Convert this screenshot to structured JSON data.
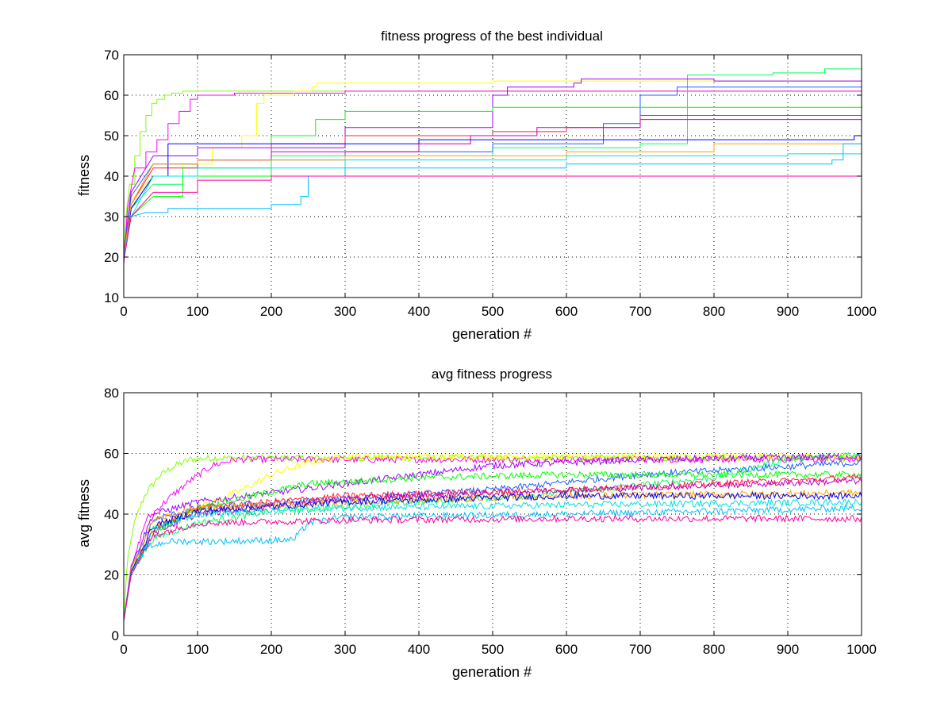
{
  "chart_data": [
    {
      "type": "line",
      "title": "fitness progress of the best individual",
      "xlabel": "generation #",
      "ylabel": "fitness",
      "xlim": [
        0,
        1000
      ],
      "ylim": [
        10,
        70
      ],
      "xticks": [
        0,
        100,
        200,
        300,
        400,
        500,
        600,
        700,
        800,
        900,
        1000
      ],
      "yticks": [
        10,
        20,
        30,
        40,
        50,
        60,
        70
      ],
      "grid": true,
      "legend": "none",
      "series_colors": [
        "#00e0e0",
        "#2060ff",
        "#ff00a0",
        "#ff00ff",
        "#ffff00",
        "#80ff00",
        "#00ff60",
        "#ff2040",
        "#ffa000",
        "#a000ff",
        "#0000ff",
        "#00c0ff",
        "#c000c0",
        "#00ff00"
      ],
      "series": [
        {
          "color": "#80ff00",
          "x": [
            0,
            3,
            8,
            15,
            22,
            30,
            38,
            45,
            55,
            65,
            80,
            120,
            200,
            300,
            1000
          ],
          "y": [
            19,
            30,
            38,
            45,
            51,
            55,
            58,
            59,
            60,
            60.5,
            61,
            61,
            61,
            61,
            61
          ]
        },
        {
          "color": "#ff00ff",
          "x": [
            0,
            5,
            15,
            30,
            45,
            60,
            75,
            90,
            100,
            150,
            300,
            1000
          ],
          "y": [
            18,
            32,
            42,
            46,
            49,
            53,
            56,
            59,
            60,
            60.5,
            61,
            61
          ]
        },
        {
          "color": "#ffff00",
          "x": [
            0,
            10,
            40,
            80,
            120,
            160,
            180,
            190,
            230,
            255,
            262,
            500,
            1000
          ],
          "y": [
            20,
            34,
            40,
            43,
            47,
            50,
            58,
            60,
            61,
            62,
            63,
            63.5,
            63.5
          ]
        },
        {
          "color": "#00ff60",
          "x": [
            0,
            10,
            40,
            80,
            200,
            500,
            700,
            758,
            764,
            880,
            950,
            1000
          ],
          "y": [
            20,
            32,
            38,
            42,
            45,
            47,
            48,
            48,
            65,
            65.5,
            66.5,
            66.5
          ]
        },
        {
          "color": "#a000ff",
          "x": [
            0,
            10,
            40,
            100,
            300,
            500,
            520,
            610,
            620,
            800,
            1000
          ],
          "y": [
            21,
            36,
            45,
            47,
            52,
            60,
            62,
            63,
            64,
            63.5,
            63
          ]
        },
        {
          "color": "#2060ff",
          "x": [
            0,
            10,
            40,
            100,
            300,
            500,
            650,
            700,
            750,
            1000
          ],
          "y": [
            21,
            35,
            43,
            44,
            46,
            48,
            53,
            60,
            62,
            62
          ]
        },
        {
          "color": "#00ff00",
          "x": [
            0,
            10,
            40,
            80,
            200,
            260,
            300,
            500,
            1000
          ],
          "y": [
            20,
            30,
            35,
            40,
            50,
            54,
            56,
            57,
            57
          ]
        },
        {
          "color": "#ff2040",
          "x": [
            0,
            10,
            40,
            100,
            200,
            300,
            500,
            600,
            700,
            1000
          ],
          "y": [
            21,
            33,
            42,
            44,
            48,
            50,
            51,
            52,
            55,
            55
          ]
        },
        {
          "color": "#c000c0",
          "x": [
            0,
            10,
            40,
            100,
            200,
            400,
            470,
            560,
            700,
            1000
          ],
          "y": [
            20,
            32,
            40,
            44,
            46,
            48,
            50,
            52,
            54,
            54
          ]
        },
        {
          "color": "#0000ff",
          "x": [
            0,
            10,
            40,
            60,
            100,
            200,
            400,
            600,
            900,
            990,
            1000
          ],
          "y": [
            20,
            32,
            40,
            48,
            48,
            48,
            49,
            49,
            49,
            50,
            50
          ]
        },
        {
          "color": "#ffa000",
          "x": [
            0,
            10,
            40,
            100,
            300,
            600,
            800,
            1000
          ],
          "y": [
            20,
            33,
            43,
            44,
            45,
            46,
            48,
            49
          ]
        },
        {
          "color": "#00e0e0",
          "x": [
            0,
            10,
            40,
            100,
            300,
            600,
            900,
            1000
          ],
          "y": [
            20,
            30,
            40,
            42,
            44,
            45,
            45.5,
            46
          ]
        },
        {
          "color": "#00c0ff",
          "x": [
            0,
            10,
            30,
            60,
            100,
            200,
            240,
            250,
            300,
            600,
            900,
            960,
            975,
            1000
          ],
          "y": [
            20,
            30,
            31,
            32,
            32,
            33,
            35,
            40,
            42,
            43,
            43,
            44,
            48,
            49.5
          ]
        },
        {
          "color": "#ff00a0",
          "x": [
            0,
            10,
            40,
            100,
            200,
            500,
            1000
          ],
          "y": [
            19,
            30,
            36,
            39,
            40,
            40,
            40
          ]
        }
      ]
    },
    {
      "type": "line",
      "title": "avg fitness progress",
      "xlabel": "generation #",
      "ylabel": "avg fitness",
      "xlim": [
        0,
        1000
      ],
      "ylim": [
        0,
        80
      ],
      "xticks": [
        0,
        100,
        200,
        300,
        400,
        500,
        600,
        700,
        800,
        900,
        1000
      ],
      "yticks": [
        0,
        20,
        40,
        60,
        80
      ],
      "grid": true,
      "legend": "none",
      "series": [
        {
          "color": "#80ff00",
          "x": [
            0,
            5,
            15,
            30,
            50,
            70,
            90,
            120,
            300,
            1000
          ],
          "y": [
            6,
            25,
            38,
            47,
            53,
            56,
            58,
            58.5,
            58.5,
            58.5
          ]
        },
        {
          "color": "#ff00ff",
          "x": [
            0,
            10,
            30,
            60,
            90,
            120,
            150,
            300,
            1000
          ],
          "y": [
            5,
            22,
            38,
            45,
            51,
            56,
            58,
            58,
            58
          ]
        },
        {
          "color": "#ffff00",
          "x": [
            0,
            10,
            40,
            100,
            160,
            200,
            250,
            300,
            500,
            1000
          ],
          "y": [
            5,
            22,
            35,
            42,
            48,
            53,
            57,
            59,
            59,
            59
          ]
        },
        {
          "color": "#00ff60",
          "x": [
            0,
            10,
            40,
            100,
            200,
            400,
            600,
            800,
            900,
            1000
          ],
          "y": [
            5,
            21,
            32,
            37,
            41,
            44,
            47,
            52,
            58,
            60
          ]
        },
        {
          "color": "#a000ff",
          "x": [
            0,
            10,
            40,
            100,
            300,
            500,
            700,
            1000
          ],
          "y": [
            5,
            23,
            40,
            44,
            50,
            56,
            58,
            59
          ]
        },
        {
          "color": "#2060ff",
          "x": [
            0,
            10,
            40,
            100,
            300,
            500,
            700,
            1000
          ],
          "y": [
            5,
            22,
            38,
            42,
            45,
            48,
            53,
            57
          ]
        },
        {
          "color": "#00ff00",
          "x": [
            0,
            10,
            40,
            100,
            250,
            400,
            600,
            1000
          ],
          "y": [
            5,
            21,
            34,
            42,
            50,
            52,
            53,
            53
          ]
        },
        {
          "color": "#ff2040",
          "x": [
            0,
            10,
            40,
            100,
            300,
            600,
            1000
          ],
          "y": [
            5,
            21,
            35,
            42,
            46,
            48,
            52
          ]
        },
        {
          "color": "#c000c0",
          "x": [
            0,
            10,
            40,
            100,
            300,
            600,
            1000
          ],
          "y": [
            5,
            20,
            34,
            40,
            45,
            48,
            51
          ]
        },
        {
          "color": "#ffa000",
          "x": [
            0,
            10,
            40,
            100,
            300,
            600,
            1000
          ],
          "y": [
            5,
            22,
            38,
            42,
            44,
            46,
            47
          ]
        },
        {
          "color": "#0000ff",
          "x": [
            0,
            10,
            40,
            100,
            300,
            600,
            1000
          ],
          "y": [
            5,
            21,
            36,
            41,
            44,
            46,
            46
          ]
        },
        {
          "color": "#00e0e0",
          "x": [
            0,
            10,
            40,
            100,
            300,
            600,
            1000
          ],
          "y": [
            5,
            20,
            35,
            40,
            42,
            43,
            44
          ]
        },
        {
          "color": "#00c0ff",
          "x": [
            0,
            10,
            30,
            60,
            120,
            230,
            250,
            300,
            600,
            1000
          ],
          "y": [
            5,
            20,
            29,
            31,
            31,
            31.5,
            37,
            39,
            40,
            42
          ]
        },
        {
          "color": "#ff00a0",
          "x": [
            0,
            10,
            40,
            100,
            300,
            600,
            1000
          ],
          "y": [
            5,
            20,
            33,
            37,
            38,
            38.5,
            38.5
          ]
        }
      ]
    }
  ]
}
